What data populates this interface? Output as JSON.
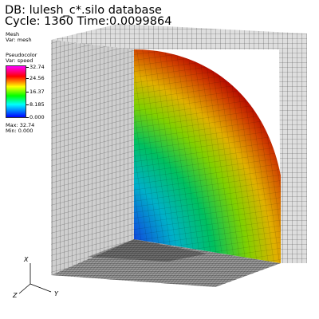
{
  "header": {
    "db_line": "DB: lulesh_c*.silo database",
    "cycle_line": "Cycle: 1360     Time:0.0099864"
  },
  "mesh_legend": {
    "title": "Mesh",
    "var": "Var: mesh"
  },
  "pseudocolor_legend": {
    "title": "Pseudocolor",
    "var": "Var: speed",
    "ticks": [
      "32.74",
      "24.56",
      "16.37",
      "8.185",
      "0.000"
    ],
    "max": "Max: 32.74",
    "min": "Min: 0.000"
  },
  "axes": {
    "x": "X",
    "y": "Y",
    "z": "Z"
  },
  "colors": {
    "mesh_line": "#444444",
    "mesh_face": "#dcdcdc",
    "hot": "#cc1a00",
    "cold": "#0a00c8"
  }
}
